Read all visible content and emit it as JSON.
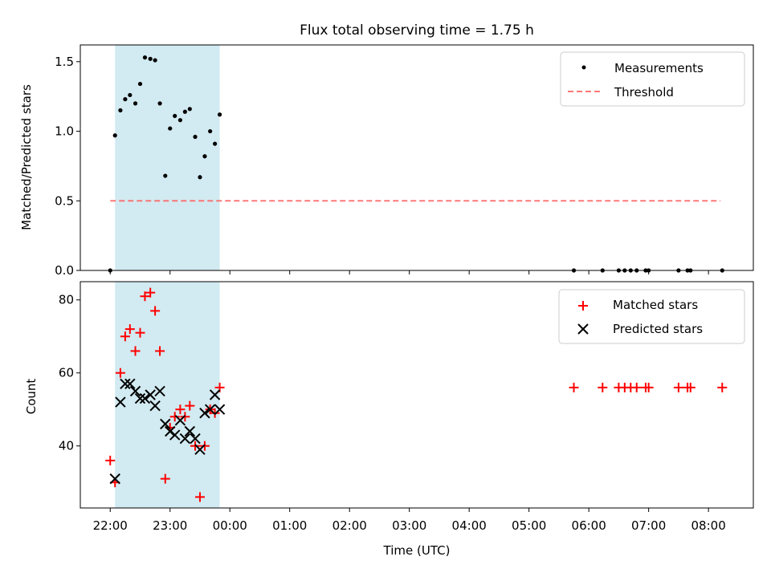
{
  "figure": {
    "title": "Flux total observing time = 1.75 h",
    "xlabel": "Time (UTC)",
    "x_ticks": [
      "22:00",
      "23:00",
      "00:00",
      "01:00",
      "02:00",
      "03:00",
      "04:00",
      "05:00",
      "06:00",
      "07:00",
      "08:00"
    ]
  },
  "chart_data": [
    {
      "type": "scatter",
      "panel": "top",
      "ylabel": "Matched/Predicted stars",
      "ylim": [
        0,
        1.62
      ],
      "x_unit": "hours since 22:00 UTC",
      "xlim": [
        -0.5,
        10.75
      ],
      "y_ticks": [
        0.0,
        0.5,
        1.0,
        1.5
      ],
      "y_tick_labels": [
        "0.0",
        "0.5",
        "1.0",
        "1.5"
      ],
      "shaded_interval": [
        0.08,
        1.83
      ],
      "shade_color": "#add8e6",
      "legend_position": "top-right",
      "series": [
        {
          "name": "Measurements",
          "kind": "dot",
          "color": "#000000",
          "points": [
            [
              0.0,
              0.0
            ],
            [
              0.08,
              0.97
            ],
            [
              0.17,
              1.15
            ],
            [
              0.25,
              1.23
            ],
            [
              0.33,
              1.26
            ],
            [
              0.42,
              1.2
            ],
            [
              0.5,
              1.34
            ],
            [
              0.58,
              1.53
            ],
            [
              0.67,
              1.52
            ],
            [
              0.75,
              1.51
            ],
            [
              0.83,
              1.2
            ],
            [
              0.92,
              0.68
            ],
            [
              1.0,
              1.02
            ],
            [
              1.08,
              1.11
            ],
            [
              1.17,
              1.08
            ],
            [
              1.25,
              1.14
            ],
            [
              1.33,
              1.16
            ],
            [
              1.42,
              0.96
            ],
            [
              1.5,
              0.67
            ],
            [
              1.58,
              0.82
            ],
            [
              1.67,
              1.0
            ],
            [
              1.75,
              0.91
            ],
            [
              1.83,
              1.12
            ],
            [
              7.75,
              0.0
            ],
            [
              8.23,
              0.0
            ],
            [
              8.5,
              0.0
            ],
            [
              8.6,
              0.0
            ],
            [
              8.7,
              0.0
            ],
            [
              8.8,
              0.0
            ],
            [
              8.95,
              0.0
            ],
            [
              9.0,
              0.0
            ],
            [
              9.5,
              0.0
            ],
            [
              9.65,
              0.0
            ],
            [
              9.7,
              0.0
            ],
            [
              10.23,
              0.0
            ]
          ]
        },
        {
          "name": "Threshold",
          "kind": "dashed-line",
          "color": "#ff6060",
          "points": [
            [
              0.0,
              0.5
            ],
            [
              10.2,
              0.5
            ]
          ]
        }
      ]
    },
    {
      "type": "scatter",
      "panel": "bottom",
      "xlabel": "Time (UTC)",
      "ylabel": "Count",
      "ylim": [
        23,
        85
      ],
      "x_unit": "hours since 22:00 UTC",
      "xlim": [
        -0.5,
        10.75
      ],
      "y_ticks": [
        40,
        60,
        80
      ],
      "y_tick_labels": [
        "40",
        "60",
        "80"
      ],
      "shaded_interval": [
        0.08,
        1.83
      ],
      "shade_color": "#add8e6",
      "legend_position": "top-right",
      "series": [
        {
          "name": "Matched stars",
          "kind": "plus",
          "color": "#ff0000",
          "points": [
            [
              0.0,
              36
            ],
            [
              0.08,
              30
            ],
            [
              0.17,
              60
            ],
            [
              0.25,
              70
            ],
            [
              0.33,
              72
            ],
            [
              0.42,
              66
            ],
            [
              0.5,
              71
            ],
            [
              0.58,
              81
            ],
            [
              0.67,
              82
            ],
            [
              0.75,
              77
            ],
            [
              0.83,
              66
            ],
            [
              0.92,
              31
            ],
            [
              1.0,
              45
            ],
            [
              1.08,
              48
            ],
            [
              1.17,
              50
            ],
            [
              1.25,
              48
            ],
            [
              1.33,
              51
            ],
            [
              1.42,
              40
            ],
            [
              1.5,
              26
            ],
            [
              1.58,
              40
            ],
            [
              1.67,
              50
            ],
            [
              1.75,
              49
            ],
            [
              1.83,
              56
            ],
            [
              7.75,
              56
            ],
            [
              8.23,
              56
            ],
            [
              8.5,
              56
            ],
            [
              8.6,
              56
            ],
            [
              8.7,
              56
            ],
            [
              8.8,
              56
            ],
            [
              8.95,
              56
            ],
            [
              9.0,
              56
            ],
            [
              9.5,
              56
            ],
            [
              9.65,
              56
            ],
            [
              9.7,
              56
            ],
            [
              10.23,
              56
            ]
          ]
        },
        {
          "name": "Predicted stars",
          "kind": "cross",
          "color": "#000000",
          "points": [
            [
              0.08,
              31
            ],
            [
              0.17,
              52
            ],
            [
              0.25,
              57
            ],
            [
              0.33,
              57
            ],
            [
              0.42,
              55
            ],
            [
              0.5,
              53
            ],
            [
              0.58,
              53
            ],
            [
              0.67,
              54
            ],
            [
              0.75,
              51
            ],
            [
              0.83,
              55
            ],
            [
              0.92,
              46
            ],
            [
              1.0,
              44
            ],
            [
              1.08,
              43
            ],
            [
              1.17,
              47
            ],
            [
              1.25,
              42
            ],
            [
              1.33,
              44
            ],
            [
              1.42,
              42
            ],
            [
              1.5,
              39
            ],
            [
              1.58,
              49
            ],
            [
              1.67,
              50
            ],
            [
              1.75,
              54
            ],
            [
              1.83,
              50
            ]
          ]
        }
      ]
    }
  ]
}
